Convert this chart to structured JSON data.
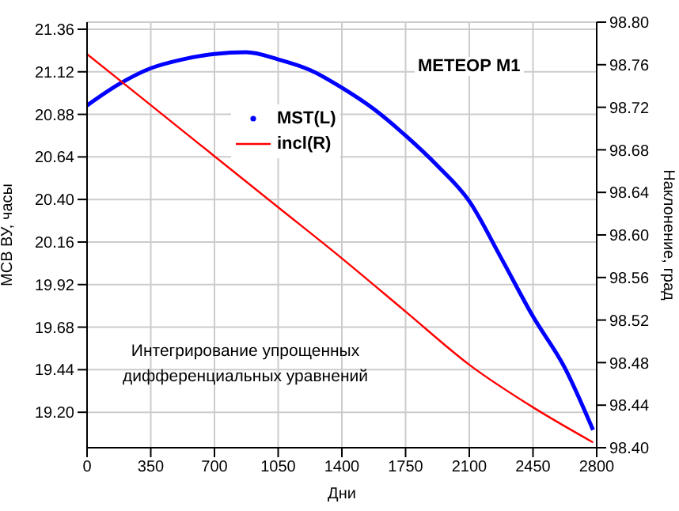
{
  "chart_data": {
    "type": "line",
    "title": "МЕТЕОР М1",
    "xlabel": "Дни",
    "ylabel": "МСВ ВУ, часы",
    "y2label": "Наклонение, град",
    "annotations": [
      "Интегрирование упрощенных дифференциальных уравнений"
    ],
    "xlim": [
      0,
      2800
    ],
    "xticks": [
      0,
      350,
      700,
      1050,
      1400,
      1750,
      2100,
      2450,
      2800
    ],
    "ylim": [
      19.0,
      21.4
    ],
    "yticks": [
      {
        "value": 19.2,
        "label": "19.20"
      },
      19.44,
      19.68,
      19.92,
      20.16,
      {
        "value": 20.4,
        "label": "20.40"
      },
      20.64,
      20.88,
      21.12,
      21.36
    ],
    "y2lim": [
      98.4,
      98.8
    ],
    "y2ticks": [
      {
        "value": 98.4,
        "label": "98.40"
      },
      98.44,
      98.48,
      98.52,
      98.56,
      {
        "value": 98.6,
        "label": "98.60"
      },
      98.64,
      98.68,
      98.72,
      98.76,
      {
        "value": 98.8,
        "label": "98.80"
      }
    ],
    "grid": true,
    "legend": "top",
    "series": [
      {
        "name": "MST(L)",
        "color": "#0000ff",
        "x": [
          0,
          175,
          350,
          525,
          700,
          875,
          1050,
          1225,
          1400,
          1575,
          1750,
          1925,
          2100,
          2275,
          2450,
          2625,
          2780
        ],
        "values": [
          20.93,
          21.05,
          21.14,
          21.19,
          21.22,
          21.23,
          21.19,
          21.13,
          21.03,
          20.91,
          20.76,
          20.59,
          20.39,
          20.07,
          19.74,
          19.45,
          19.1
        ]
      },
      {
        "name": "incl(R)",
        "axis": "y2",
        "color": "#ff0000",
        "x": [
          0,
          350,
          700,
          1050,
          1400,
          1750,
          2100,
          2450,
          2780
        ],
        "values": [
          98.77,
          98.722,
          98.674,
          98.626,
          98.578,
          98.528,
          98.478,
          98.438,
          98.405
        ]
      }
    ]
  }
}
